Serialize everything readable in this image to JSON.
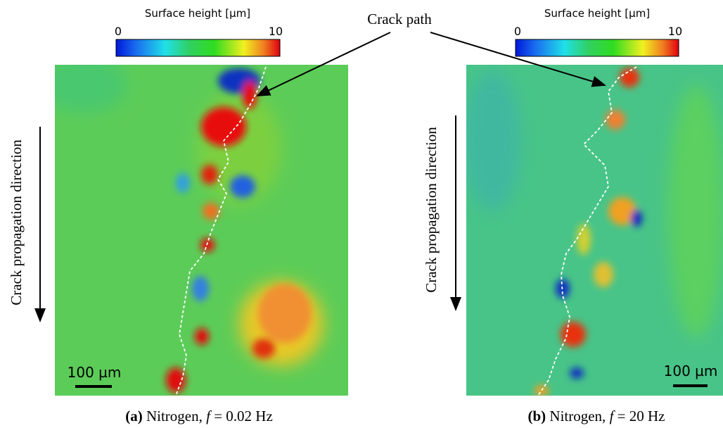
{
  "annotation": "Crack path",
  "panels": [
    {
      "colorbar": {
        "title": "Surface height [µm]",
        "min_label": "0",
        "max_label": "10"
      },
      "direction_label": "Crack propagation direction",
      "scale_bar": "100 µm",
      "caption": {
        "label": "(a)",
        "text": "Nitrogen, ",
        "variable": "f",
        "rest": " = 0.02 Hz"
      }
    },
    {
      "colorbar": {
        "title": "Surface height [µm]",
        "min_label": "0",
        "max_label": "10"
      },
      "direction_label": "Crack propagation direction",
      "scale_bar": "100 µm",
      "caption": {
        "label": "(b)",
        "text": "Nitrogen, ",
        "variable": "f",
        "rest": " = 20 Hz"
      }
    }
  ]
}
